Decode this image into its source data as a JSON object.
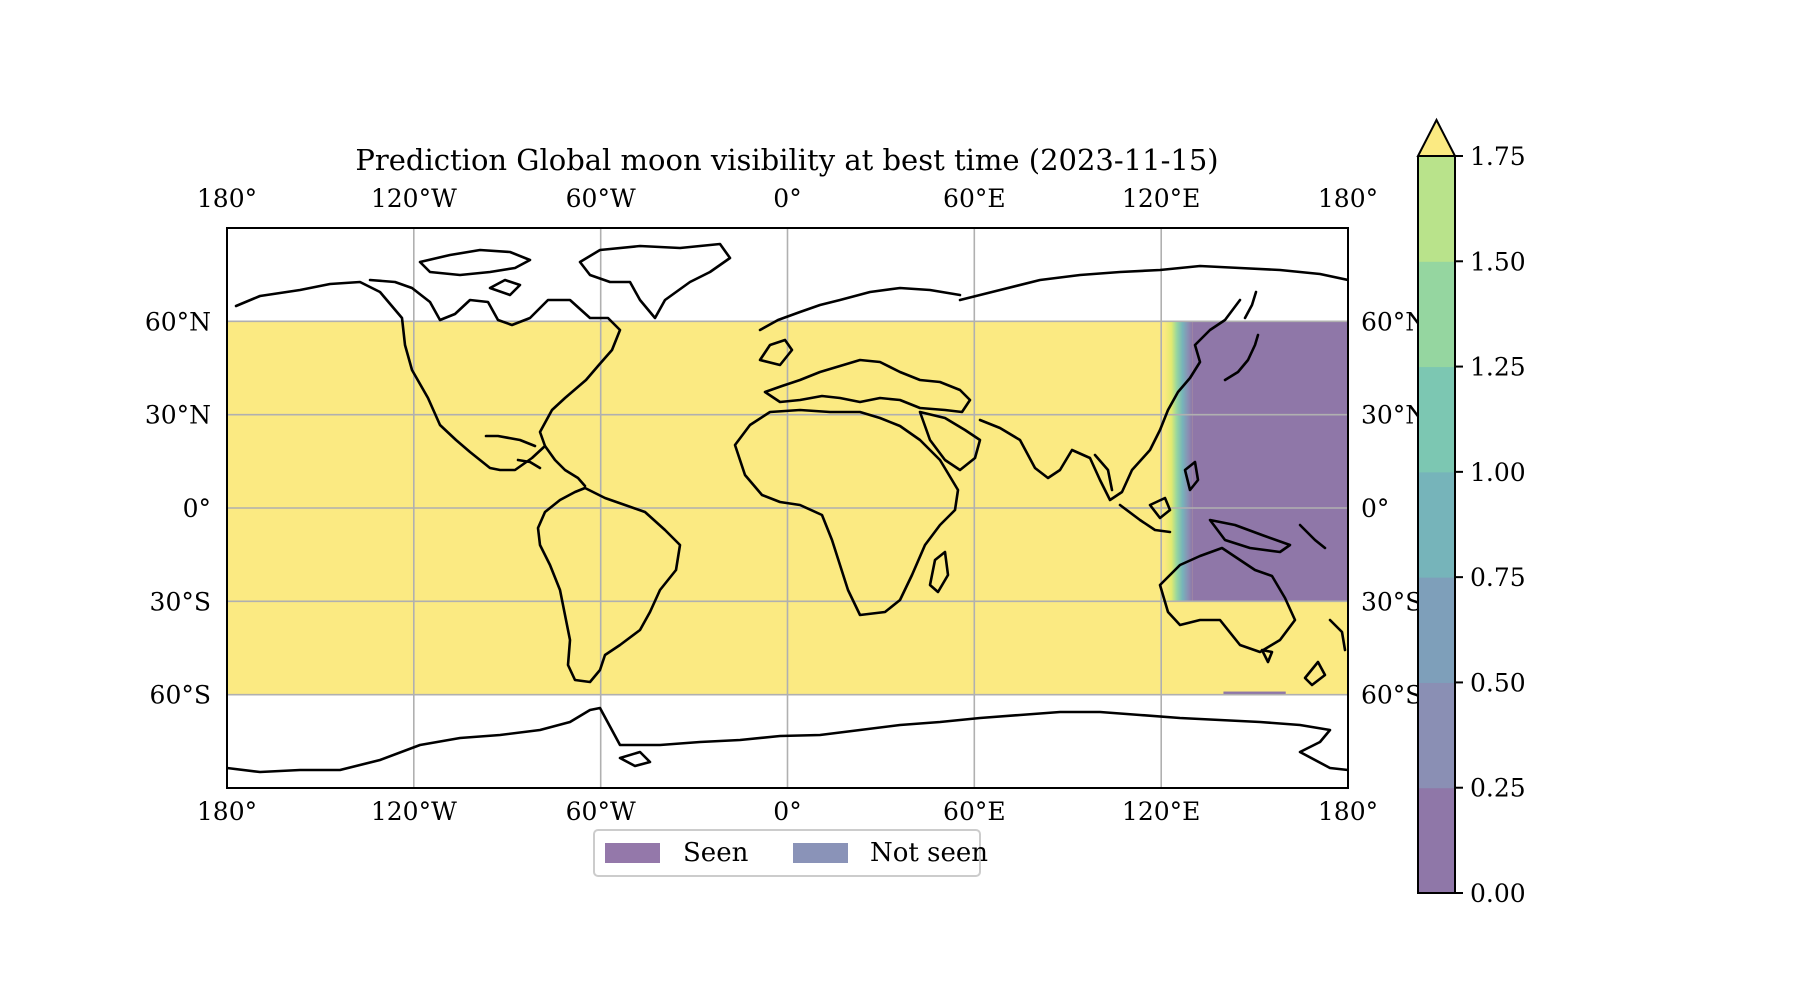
{
  "chart_data": {
    "type": "heatmap",
    "title": "Prediction Global moon visibility at best time (2023-11-15)",
    "projection": "PlateCarree",
    "data_lat_range": [
      -60,
      60
    ],
    "xlim": [
      -180,
      180
    ],
    "ylim": [
      -90,
      90
    ],
    "grid": true,
    "x_tick_labels": [
      "180°",
      "120°W",
      "60°W",
      "0°",
      "60°E",
      "120°E",
      "180°"
    ],
    "x_ticks": [
      -180,
      -120,
      -60,
      0,
      60,
      120,
      180
    ],
    "y_tick_labels": [
      "60°S",
      "30°S",
      "0°",
      "30°N",
      "60°N"
    ],
    "y_ticks": [
      -60,
      -30,
      0,
      30,
      60
    ],
    "colormap": "viridis (alpha 0.6)",
    "colorbar": {
      "levels": [
        0.0,
        0.25,
        0.5,
        0.75,
        1.0,
        1.25,
        1.5,
        1.75
      ],
      "tick_labels": [
        "0.00",
        "0.25",
        "0.50",
        "0.75",
        "1.00",
        "1.25",
        "1.50",
        "1.75"
      ],
      "extend": "max",
      "colors": [
        "#8f77a8",
        "#8a8fb4",
        "#7e9fba",
        "#76b4ba",
        "#7cc7b2",
        "#95d6a0",
        "#b9e38b",
        "#e3ea6f"
      ],
      "over_color": "#fbea82"
    },
    "regions": [
      {
        "name": "background",
        "value": 1.75,
        "lon": [
          -180,
          180
        ],
        "lat": [
          -60,
          60
        ]
      },
      {
        "name": "west-pacific-region",
        "value": 0.0,
        "lon": [
          130,
          180
        ],
        "lat": [
          -30,
          60
        ]
      },
      {
        "name": "southern-strip",
        "value": 0.0,
        "lon": [
          140,
          160
        ],
        "lat": [
          -60,
          -59
        ]
      }
    ],
    "legend": {
      "placement": "lower-center-below-axes",
      "entries": [
        {
          "label": "Seen",
          "color": "#9478aa"
        },
        {
          "label": "Not seen",
          "color": "#8a93b8"
        }
      ]
    }
  }
}
